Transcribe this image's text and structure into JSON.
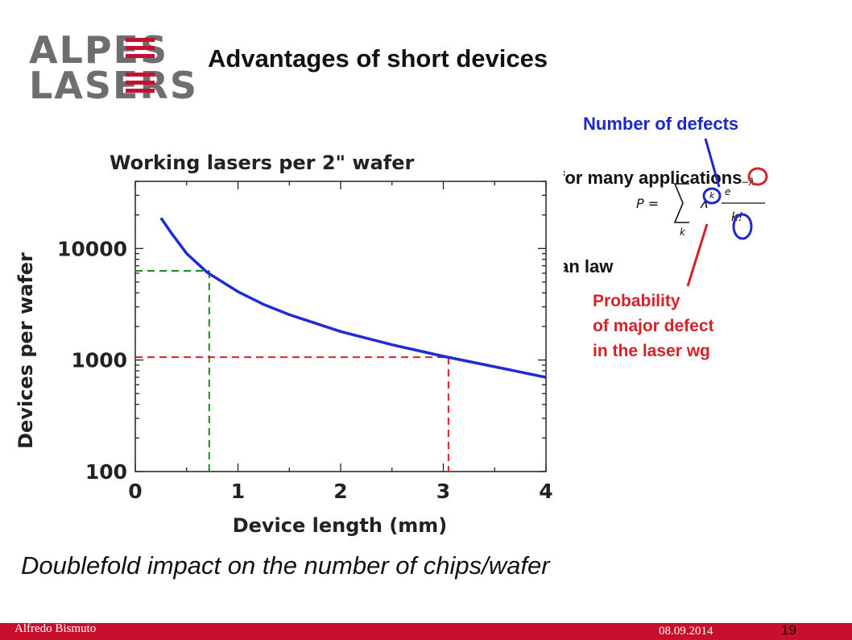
{
  "logo": {
    "line1": "ALPES",
    "line2": "LASERS"
  },
  "slide": {
    "title": "Advantages of short devices",
    "bullet_1": "for many applications",
    "bullet_2": "ian law",
    "conclusion": "Doublefold impact on the number of chips/wafer"
  },
  "annotations": {
    "defects_label": "Number of defects",
    "probability_lines": [
      "Probability",
      "of major defect",
      "in the laser wg"
    ]
  },
  "formula": {
    "lhs": "P =",
    "sum_index": "k",
    "lambda": "λ",
    "exp_top": "e",
    "minus_lambda": "−λ",
    "denominator": "k!",
    "exponent": "k"
  },
  "colors": {
    "defects_blue": "#1c28c8",
    "probability_red": "#d3222a",
    "footer_red": "#c8102e",
    "curve_blue": "#1f2bd4",
    "green_guide": "#1a8a1a",
    "red_guide": "#e02020"
  },
  "footer": {
    "author": "Alfredo Bismuto",
    "date": "08.09.2014",
    "page": "19"
  },
  "chart_data": {
    "type": "line",
    "title": "Working lasers per 2\" wafer",
    "xlabel": "Device length (mm)",
    "ylabel": "Devices per wafer",
    "xlim": [
      0,
      4
    ],
    "ylim": [
      100,
      40000
    ],
    "yscale": "log",
    "xticks": [
      0,
      1,
      2,
      3,
      4
    ],
    "yticks": [
      100,
      1000,
      10000
    ],
    "grid": false,
    "series": [
      {
        "x": [
          0.25,
          0.35,
          0.5,
          0.7,
          1.0,
          1.25,
          1.5,
          2.0,
          2.5,
          3.0,
          3.5,
          4.0
        ],
        "y": [
          18800,
          13800,
          9000,
          6100,
          4100,
          3150,
          2550,
          1800,
          1370,
          1080,
          870,
          700
        ]
      }
    ],
    "guides": [
      {
        "x": 0.72,
        "y": 6300,
        "color": "green"
      },
      {
        "x": 3.05,
        "y": 1060,
        "color": "red"
      }
    ]
  }
}
